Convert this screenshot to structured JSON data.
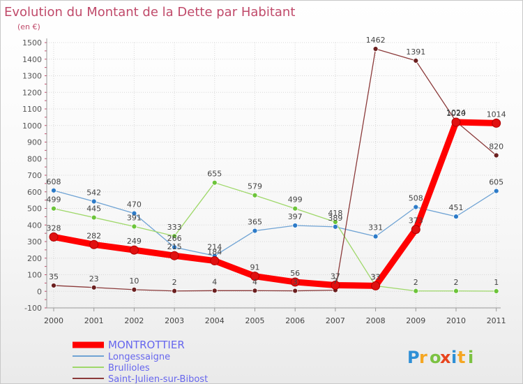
{
  "chart_data": {
    "type": "line",
    "title": "Evolution du Montant de la Dette par Habitant",
    "subtitle": "(en €)",
    "x": [
      "2000",
      "2001",
      "2002",
      "2003",
      "2004",
      "2005",
      "2006",
      "2007",
      "2008",
      "2009",
      "2010",
      "2011"
    ],
    "ylim": [
      -100,
      1500
    ],
    "yticks": [
      "-100",
      "0",
      "100",
      "200",
      "300",
      "400",
      "500",
      "600",
      "700",
      "800",
      "900",
      "1000",
      "1100",
      "1200",
      "1300",
      "1400",
      "1500"
    ],
    "grid": true,
    "legend_position": "bottom-left",
    "series": [
      {
        "name": "MONTROTTIER",
        "color": "#ff0000",
        "marker_color": "#e01010",
        "values": [
          328,
          282,
          249,
          215,
          184,
          91,
          56,
          37,
          33,
          373,
          1020,
          1014
        ]
      },
      {
        "name": "Longessaigne",
        "color": "#6fa3d4",
        "marker_color": "#2d7bc8",
        "values": [
          608,
          542,
          470,
          266,
          214,
          365,
          397,
          389,
          331,
          508,
          451,
          605
        ]
      },
      {
        "name": "Brullioles",
        "color": "#9fd86a",
        "marker_color": "#6cc43a",
        "values": [
          499,
          445,
          391,
          333,
          655,
          579,
          499,
          418,
          33,
          2,
          2,
          1
        ]
      },
      {
        "name": "Saint-Julien-sur-Bibost",
        "color": "#8b3a3a",
        "marker_color": "#6b1f1f",
        "values": [
          35,
          23,
          10,
          2,
          4,
          4,
          3,
          7,
          1462,
          1391,
          1024,
          820
        ]
      }
    ]
  },
  "watermark": "Proxiti"
}
